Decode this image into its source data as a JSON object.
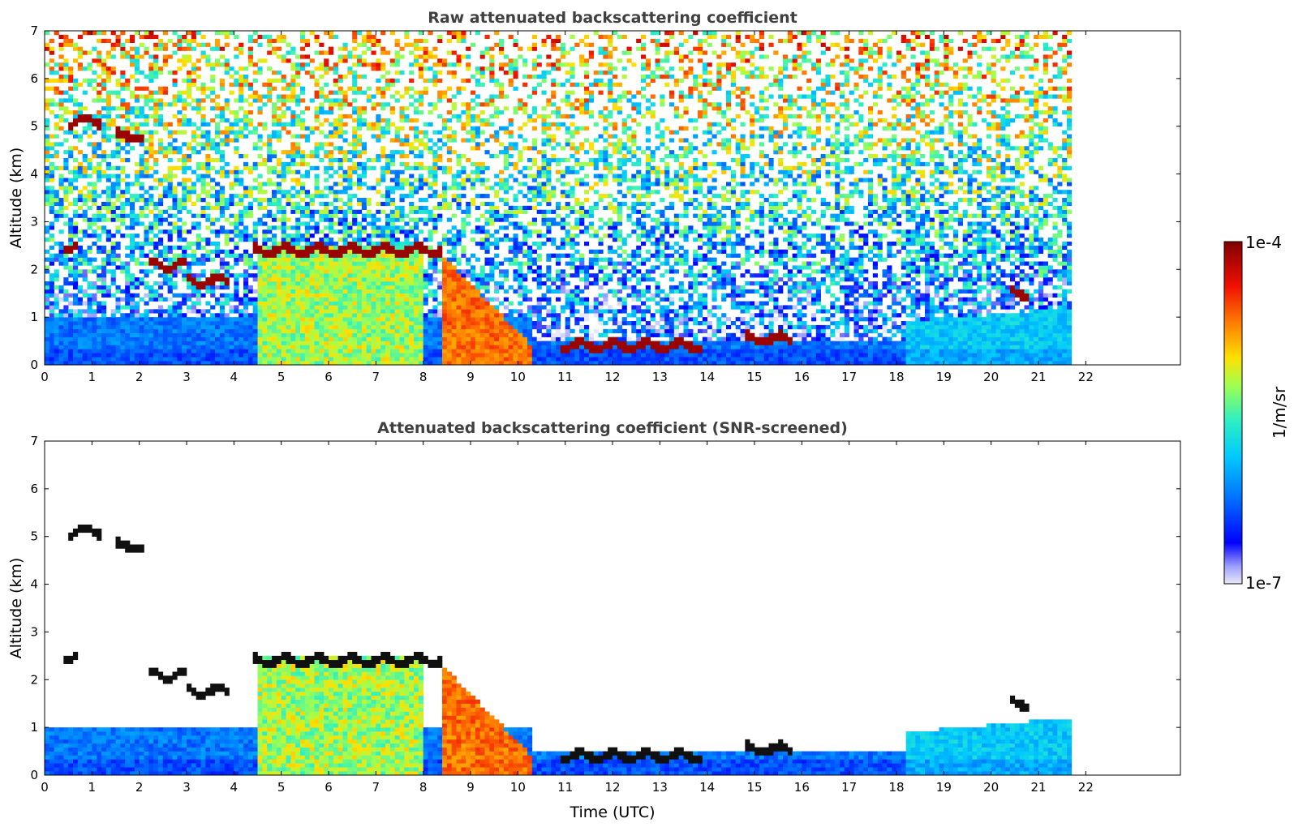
{
  "chart_data": [
    {
      "type": "heatmap",
      "title": "Raw attenuated backscattering coefficient",
      "xlabel": "",
      "ylabel": "Altitude (km)",
      "xlim": [
        0,
        24
      ],
      "ylim": [
        0,
        7
      ],
      "x_ticks": [
        "0",
        "1",
        "2",
        "3",
        "4",
        "5",
        "6",
        "7",
        "8",
        "9",
        "10",
        "11",
        "12",
        "13",
        "14",
        "15",
        "16",
        "17",
        "18",
        "19",
        "20",
        "21",
        "22"
      ],
      "y_ticks": [
        "0",
        "1",
        "2",
        "3",
        "4",
        "5",
        "6",
        "7"
      ],
      "data_end_time": 21.7,
      "cloud_layers": [
        {
          "t_start": 0.5,
          "t_end": 1.2,
          "alt": 5.1
        },
        {
          "t_start": 1.5,
          "t_end": 2.1,
          "alt": 4.8
        },
        {
          "t_start": 0.4,
          "t_end": 0.7,
          "alt": 2.5
        },
        {
          "t_start": 2.2,
          "t_end": 3.0,
          "alt": 2.1
        },
        {
          "t_start": 3.0,
          "t_end": 3.9,
          "alt": 1.75
        },
        {
          "t_start": 4.4,
          "t_end": 8.4,
          "alt": 2.4
        },
        {
          "t_start": 10.9,
          "t_end": 13.9,
          "alt": 0.4
        },
        {
          "t_start": 14.8,
          "t_end": 15.8,
          "alt": 0.55
        },
        {
          "t_start": 20.4,
          "t_end": 20.8,
          "alt": 1.5
        }
      ],
      "precipitation_periods": [
        [
          4.5,
          8.0
        ],
        [
          8.4,
          10.3
        ]
      ]
    },
    {
      "type": "heatmap",
      "title": "Attenuated backscattering coefficient (SNR-screened)",
      "xlabel": "Time (UTC)",
      "ylabel": "Altitude (km)",
      "xlim": [
        0,
        24
      ],
      "ylim": [
        0,
        7
      ],
      "x_ticks": [
        "0",
        "1",
        "2",
        "3",
        "4",
        "5",
        "6",
        "7",
        "8",
        "9",
        "10",
        "11",
        "12",
        "13",
        "14",
        "15",
        "16",
        "17",
        "18",
        "19",
        "20",
        "21",
        "22"
      ],
      "y_ticks": [
        "0",
        "1",
        "2",
        "3",
        "4",
        "5",
        "6",
        "7"
      ],
      "data_end_time": 21.7
    }
  ],
  "colorbar": {
    "label": "1/m/sr",
    "max_label": "1e-4",
    "min_label": "1e-7",
    "scale": "log",
    "colors": [
      "#e8e8f8",
      "#0000ff",
      "#0080ff",
      "#00d0ff",
      "#40ffb0",
      "#c0ff40",
      "#ffd000",
      "#ff6000",
      "#e00000",
      "#800000"
    ]
  }
}
